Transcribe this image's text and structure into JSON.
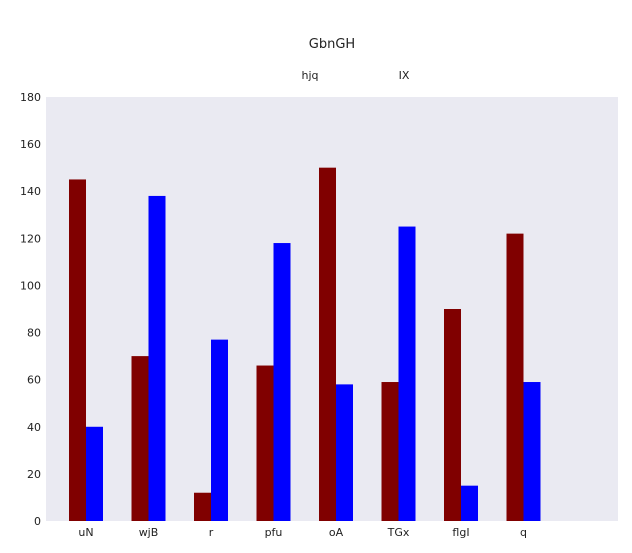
{
  "chart_data": {
    "type": "bar",
    "title": "GbnGH",
    "xlabel": "",
    "ylabel": "",
    "categories": [
      "uN",
      "wjB",
      "r",
      "pfu",
      "oA",
      "TGx",
      "flgI",
      "q"
    ],
    "series": [
      {
        "name": "hjq",
        "color": "#800000",
        "values": [
          145,
          70,
          12,
          66,
          150,
          59,
          90,
          122
        ]
      },
      {
        "name": "IX",
        "color": "#0000ff",
        "values": [
          40,
          138,
          77,
          118,
          58,
          125,
          15,
          59
        ]
      }
    ],
    "ylim": [
      0,
      180
    ],
    "yticks": [
      0,
      20,
      40,
      60,
      80,
      100,
      120,
      140,
      160,
      180
    ],
    "grid": false,
    "legend_position": "top-center",
    "plot_background": "#eaeaf2"
  }
}
